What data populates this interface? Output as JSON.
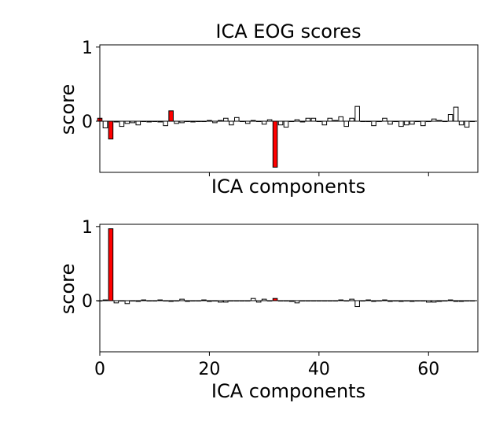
{
  "chart_data": [
    {
      "type": "bar",
      "title": "ICA EOG scores",
      "xlabel": "ICA components",
      "ylabel": "score",
      "xlim": [
        0,
        69
      ],
      "ylim": [
        -0.69,
        1.03
      ],
      "yticks": [
        {
          "value": 0,
          "label": "0"
        },
        {
          "value": 1,
          "label": "1"
        }
      ],
      "xticks": [
        {
          "value": 20,
          "label": ""
        },
        {
          "value": 40,
          "label": ""
        },
        {
          "value": 60,
          "label": ""
        }
      ],
      "bar_color_default": "#ffffff",
      "bar_color_highlight": "#ff0000",
      "highlighted_components": [
        0,
        2,
        13,
        32
      ],
      "values": [
        0.04,
        -0.09,
        -0.24,
        -0.01,
        -0.07,
        -0.03,
        -0.02,
        -0.05,
        0.0,
        -0.01,
        0.0,
        -0.01,
        -0.06,
        0.14,
        -0.03,
        -0.02,
        0.0,
        -0.01,
        0.0,
        0.0,
        0.01,
        -0.02,
        0.01,
        0.04,
        -0.05,
        0.05,
        0.0,
        -0.03,
        0.01,
        0.0,
        -0.04,
        0.02,
        -0.62,
        -0.05,
        -0.08,
        0.0,
        0.02,
        -0.01,
        0.04,
        0.04,
        0.0,
        -0.05,
        0.04,
        0.01,
        0.06,
        -0.07,
        0.04,
        0.2,
        0.0,
        0.0,
        -0.06,
        0.0,
        0.04,
        -0.04,
        0.0,
        -0.07,
        -0.05,
        -0.04,
        0.0,
        -0.06,
        0.0,
        0.03,
        0.01,
        0.0,
        0.09,
        0.19,
        -0.05,
        -0.08,
        0.0
      ]
    },
    {
      "type": "bar",
      "title": "",
      "xlabel": "ICA components",
      "ylabel": "score",
      "xlim": [
        0,
        69
      ],
      "ylim": [
        -0.69,
        1.03
      ],
      "yticks": [
        {
          "value": 0,
          "label": "0"
        },
        {
          "value": 1,
          "label": "1"
        }
      ],
      "xticks": [
        {
          "value": 0,
          "label": "0"
        },
        {
          "value": 20,
          "label": "20"
        },
        {
          "value": 40,
          "label": "40"
        },
        {
          "value": 60,
          "label": "60"
        }
      ],
      "bar_color_default": "#ffffff",
      "bar_color_highlight": "#ff0000",
      "highlighted_components": [
        2,
        13,
        32
      ],
      "values": [
        0.0,
        0.01,
        0.97,
        -0.03,
        0.0,
        -0.04,
        0.0,
        -0.01,
        0.01,
        0.0,
        0.0,
        0.01,
        0.0,
        -0.01,
        0.0,
        0.02,
        -0.01,
        0.0,
        0.0,
        0.01,
        -0.01,
        0.0,
        -0.02,
        -0.02,
        0.0,
        0.0,
        0.0,
        0.0,
        0.03,
        -0.02,
        0.02,
        0.0,
        0.03,
        0.0,
        0.0,
        -0.01,
        -0.03,
        0.0,
        0.0,
        0.0,
        0.0,
        0.0,
        0.0,
        0.0,
        0.01,
        0.0,
        0.02,
        -0.08,
        0.0,
        0.01,
        -0.01,
        0.0,
        0.01,
        -0.01,
        0.0,
        -0.01,
        0.0,
        -0.01,
        0.0,
        0.0,
        -0.02,
        -0.02,
        -0.01,
        0.0,
        0.01,
        -0.01,
        -0.01,
        0.0,
        0.0
      ]
    }
  ]
}
